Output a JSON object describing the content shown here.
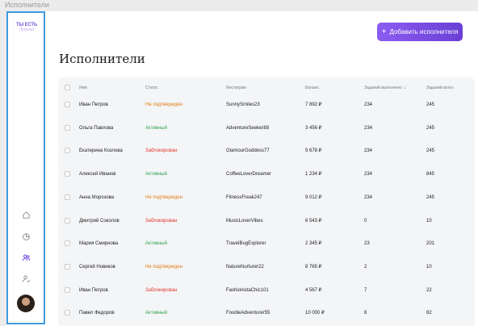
{
  "window": {
    "title": "Исполнители"
  },
  "logo": {
    "line1": "ТЫ ЕСТЬ",
    "line2": "Лучший"
  },
  "sidebar": {
    "icons": [
      "home-icon",
      "chart-pie-icon",
      "users-icon",
      "user-check-icon"
    ]
  },
  "header": {
    "add_button_label": "Добавить исполнителя",
    "page_title": "Исполнители"
  },
  "table": {
    "columns": {
      "name": "Имя",
      "status": "Статус",
      "instagram": "Инстаграм",
      "balance": "Баланс",
      "done": "Заданий выполнено",
      "total": "Заданий всего"
    },
    "rows": [
      {
        "name": "Иван Петров",
        "status": "Не подтвержден",
        "status_type": "wait",
        "instagram": "SunnySmiles23",
        "balance": "7 892 ₽",
        "done": "234",
        "total": "245"
      },
      {
        "name": "Ольга Павлова",
        "status": "Активный",
        "status_type": "active",
        "instagram": "AdventureSeeker88",
        "balance": "3 456 ₽",
        "done": "234",
        "total": "245"
      },
      {
        "name": "Екатерина Козлова",
        "status": "Заблокирован",
        "status_type": "block",
        "instagram": "GlamourGoddess77",
        "balance": "5 678 ₽",
        "done": "234",
        "total": "245"
      },
      {
        "name": "Алексей Иванов",
        "status": "Активный",
        "status_type": "active",
        "instagram": "CoffeeLoverDreamer",
        "balance": "1 234 ₽",
        "done": "234",
        "total": "845"
      },
      {
        "name": "Анна Морозова",
        "status": "Не подтвержден",
        "status_type": "wait",
        "instagram": "FitnessFreak247",
        "balance": "9 012 ₽",
        "done": "234",
        "total": "245"
      },
      {
        "name": "Дмитрий Соколов",
        "status": "Заблокирован",
        "status_type": "block",
        "instagram": "MusicLoverVibes",
        "balance": "6 543 ₽",
        "done": "0",
        "total": "10"
      },
      {
        "name": "Мария Смирнова",
        "status": "Активный",
        "status_type": "active",
        "instagram": "TravelBugExplorer",
        "balance": "2 345 ₽",
        "done": "23",
        "total": "201"
      },
      {
        "name": "Сергей Новиков",
        "status": "Не подтвержден",
        "status_type": "wait",
        "instagram": "NatureNurturer22",
        "balance": "8 765 ₽",
        "done": "2",
        "total": "10"
      },
      {
        "name": "Иван Петров",
        "status": "Заблокирован",
        "status_type": "block",
        "instagram": "FashionistaChic101",
        "balance": "4 567 ₽",
        "done": "7",
        "total": "22"
      },
      {
        "name": "Павел Федоров",
        "status": "Активный",
        "status_type": "active",
        "instagram": "FoodieAdventurer55",
        "balance": "10 000 ₽",
        "done": "8",
        "total": "82"
      }
    ]
  },
  "colors": {
    "accent": "#7b4de6",
    "wait": "#e07a12",
    "active": "#2ea44f",
    "block": "#e0382c",
    "sidebar_border": "#3d9be0"
  }
}
